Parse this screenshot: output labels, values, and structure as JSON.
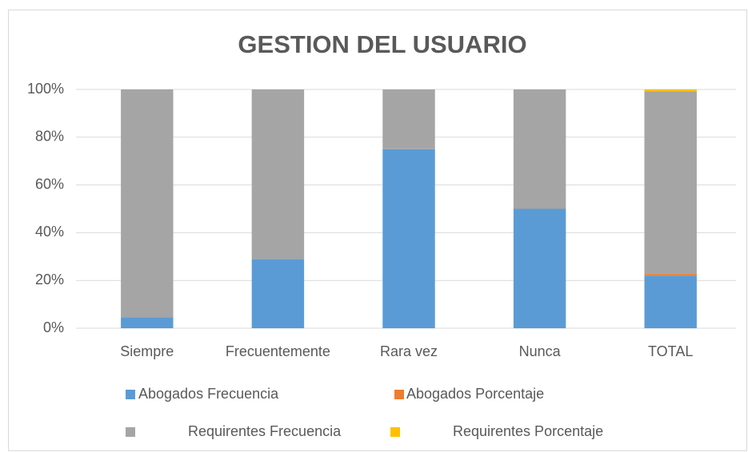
{
  "chart_data": {
    "type": "stacked_bar_100",
    "title": "GESTION DEL USUARIO",
    "categories": [
      "Siempre",
      "Frecuentemente",
      "Rara vez",
      "Nunca",
      "TOTAL"
    ],
    "series": [
      {
        "name": "Abogados Frecuencia",
        "color": "#5b9bd5",
        "values": [
          4.5,
          29,
          75,
          50,
          22
        ]
      },
      {
        "name": "Abogados Porcentaje",
        "color": "#ed7d31",
        "values": [
          0,
          0,
          0,
          0,
          0.7
        ]
      },
      {
        "name": "Requirentes Frecuencia",
        "color": "#a5a5a5",
        "values": [
          95.5,
          71,
          25,
          50,
          76.5
        ]
      },
      {
        "name": "Requirentes Porcentaje",
        "color": "#ffc000",
        "values": [
          0,
          0,
          0,
          0,
          0.8
        ]
      }
    ],
    "ylim": [
      0,
      100
    ],
    "yticks": [
      {
        "value": 0,
        "label": "0%"
      },
      {
        "value": 20,
        "label": "20%"
      },
      {
        "value": 40,
        "label": "40%"
      },
      {
        "value": 60,
        "label": "60%"
      },
      {
        "value": 80,
        "label": "80%"
      },
      {
        "value": 100,
        "label": "100%"
      }
    ],
    "grid": true,
    "legend": "bottom"
  }
}
